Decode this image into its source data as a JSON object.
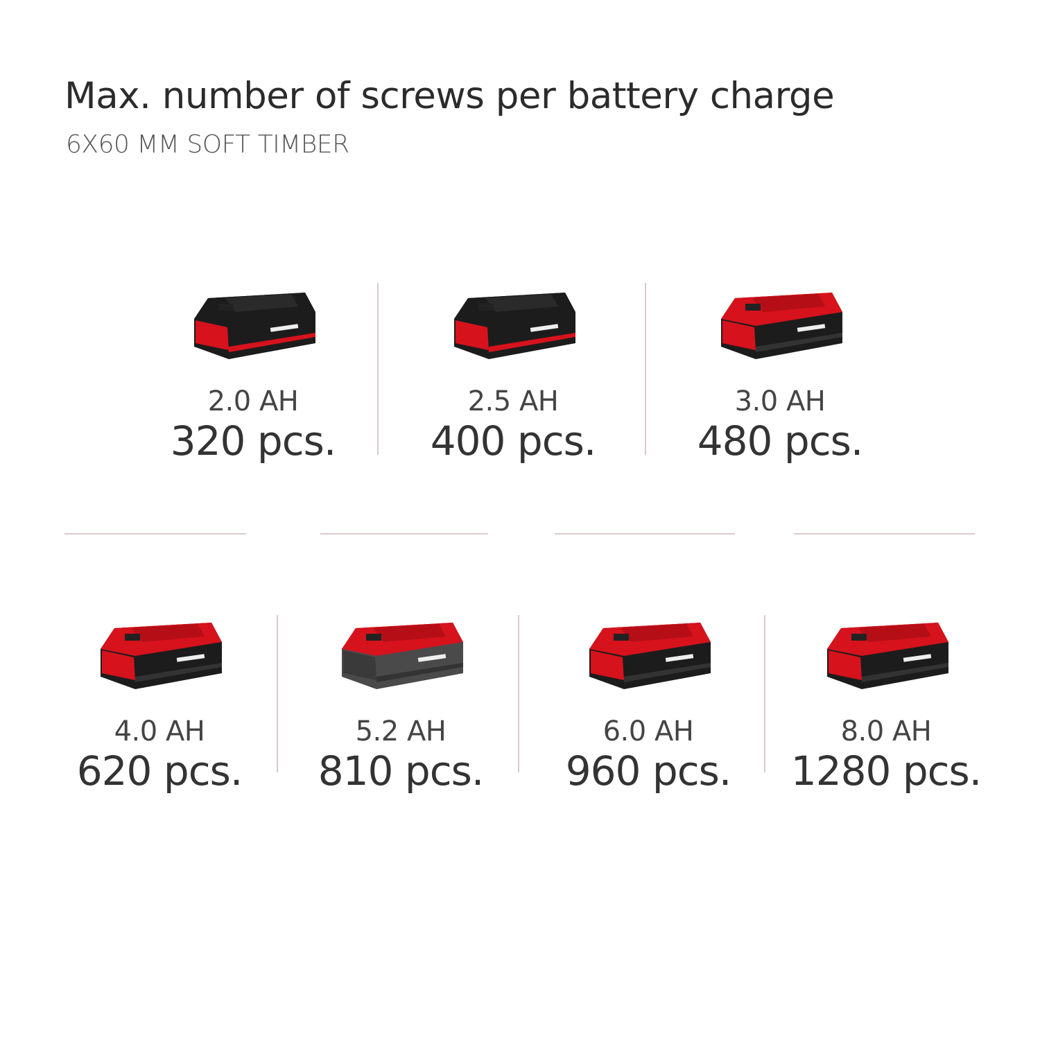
{
  "header": {
    "title": "Max. number of screws per battery charge",
    "subtitle": "6X60 MM SOFT TIMBER"
  },
  "colors": {
    "brand_red": "#d6121c",
    "battery_black": "#1c1c1c",
    "divider": "#dcc9cc"
  },
  "batteries": [
    {
      "capacity": "2.0 AH",
      "screws": "320 pcs.",
      "variant": "black"
    },
    {
      "capacity": "2.5 AH",
      "screws": "400 pcs.",
      "variant": "black"
    },
    {
      "capacity": "3.0 AH",
      "screws": "480 pcs.",
      "variant": "red"
    },
    {
      "capacity": "4.0 AH",
      "screws": "620 pcs.",
      "variant": "red"
    },
    {
      "capacity": "5.2 AH",
      "screws": "810 pcs.",
      "variant": "grey"
    },
    {
      "capacity": "6.0 AH",
      "screws": "960 pcs.",
      "variant": "red"
    },
    {
      "capacity": "8.0 AH",
      "screws": "1280 pcs.",
      "variant": "red"
    }
  ]
}
